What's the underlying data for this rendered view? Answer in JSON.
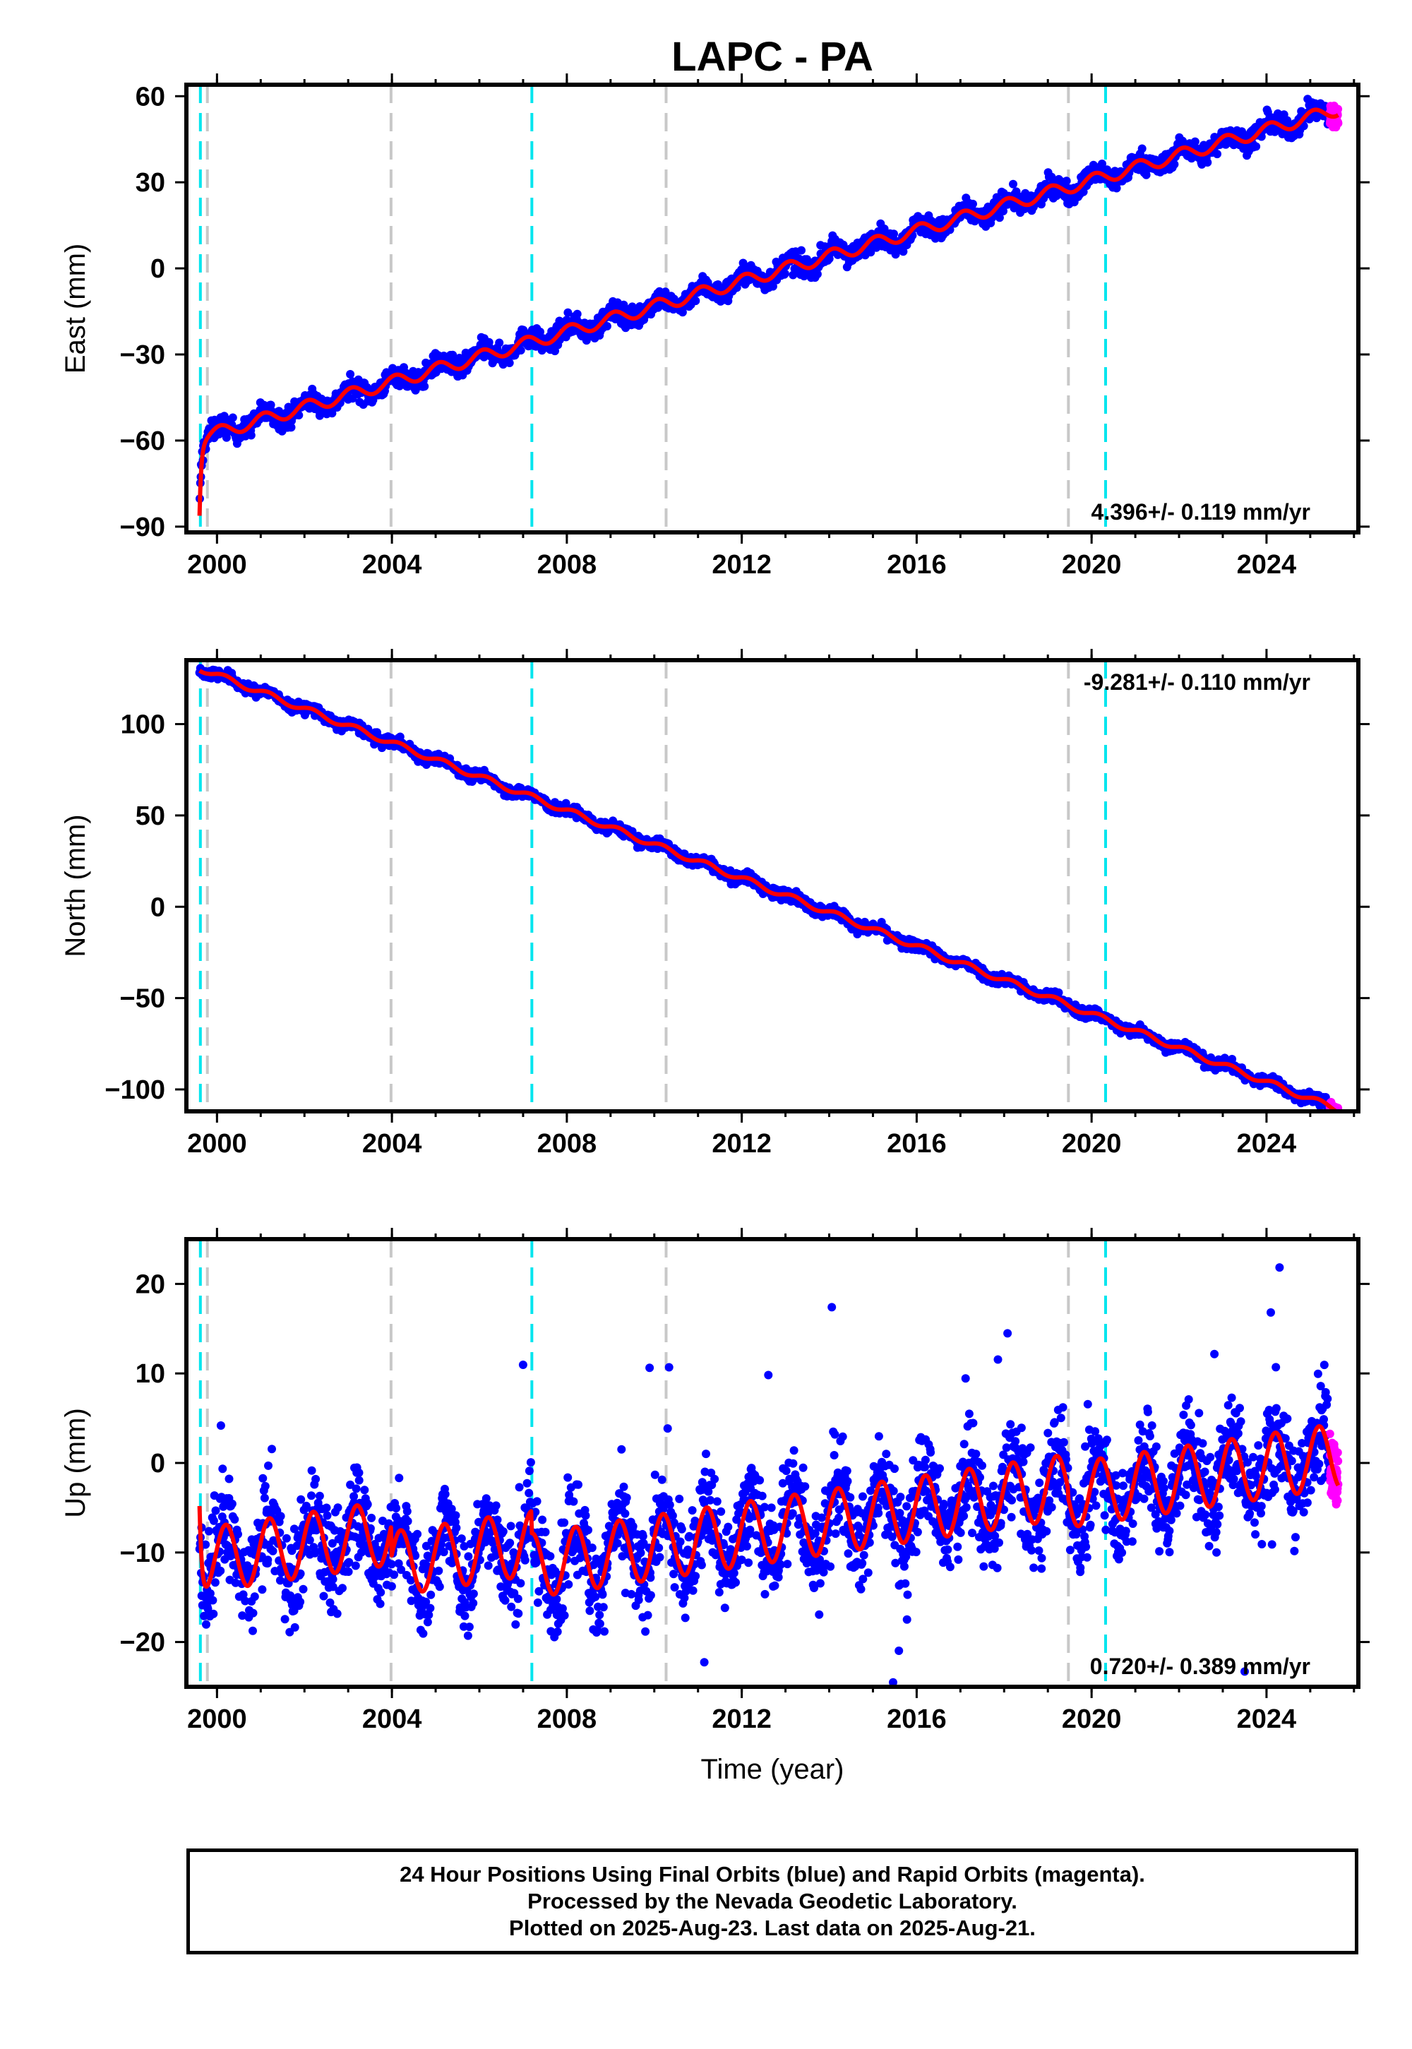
{
  "page": {
    "title": "LAPC - PA",
    "x_axis_label": "Time (year)",
    "notes": [
      "24 Hour Positions Using Final Orbits (blue) and Rapid Orbits (magenta).",
      "Processed by the Nevada Geodetic Laboratory.",
      "Plotted on 2025-Aug-23. Last data on 2025-Aug-21."
    ]
  },
  "colors": {
    "final_orbits": "#0000ff",
    "rapid_orbits": "#ff00ff",
    "model_fit": "#ff0000",
    "equipment_change": "#c8c8c8",
    "earthquake": "#00e5ee"
  },
  "chart_data": [
    {
      "type": "scatter",
      "title": "LAPC - PA",
      "xlabel": "",
      "ylabel": "East (mm)",
      "xlim": [
        1999.3,
        2026.1
      ],
      "ylim": [
        -92,
        64
      ],
      "xticks": [
        2000,
        2004,
        2008,
        2012,
        2016,
        2020,
        2024
      ],
      "xtick_labels": [
        "2000",
        "2004",
        "2008",
        "2012",
        "2016",
        "2020",
        "2024"
      ],
      "yticks": [
        60,
        30,
        0,
        -30,
        -60,
        -90
      ],
      "ytick_labels": [
        "60",
        "30",
        "0",
        "−30",
        "−60",
        "−90"
      ],
      "rate_label": "4.396+/- 0.119 mm/yr",
      "rate_position": "bottom-right",
      "equipment_change_epochs": [
        1999.78,
        2003.98,
        2010.27,
        2019.47
      ],
      "earthquake_epochs": [
        1999.62,
        2007.2,
        2020.32
      ],
      "gap": [
        2001.5,
        2001.55
      ],
      "model": {
        "trend_per_year": 4.396,
        "value_at_2012": -4.5,
        "seasonal_amp": 2.2,
        "seasonal_phase": 1.1,
        "early_offset": -25,
        "early_decay_years": 0.04
      },
      "series": [
        {
          "name": "Final Orbits (blue)",
          "x_range": [
            1999.6,
            2025.45
          ],
          "scatter_mm": 2.6,
          "outlier_mm": 0,
          "samples": 2200
        },
        {
          "name": "Rapid Orbits (magenta)",
          "x_range": [
            2025.45,
            2025.64
          ],
          "scatter_mm": 2.5,
          "samples": 60
        }
      ]
    },
    {
      "type": "scatter",
      "title": "",
      "xlabel": "",
      "ylabel": "North (mm)",
      "xlim": [
        1999.3,
        2026.1
      ],
      "ylim": [
        -112,
        135
      ],
      "xticks": [
        2000,
        2004,
        2008,
        2012,
        2016,
        2020,
        2024
      ],
      "xtick_labels": [
        "2000",
        "2004",
        "2008",
        "2012",
        "2016",
        "2020",
        "2024"
      ],
      "yticks": [
        100,
        50,
        0,
        -50,
        -100
      ],
      "ytick_labels": [
        "100",
        "50",
        "0",
        "−50",
        "−100"
      ],
      "rate_label": "-9.281+/- 0.110 mm/yr",
      "rate_position": "top-right",
      "equipment_change_epochs": [
        1999.78,
        2003.98,
        2010.27,
        2019.47
      ],
      "earthquake_epochs": [
        1999.62,
        2007.2,
        2020.32
      ],
      "gap": [
        2001.5,
        2001.55
      ],
      "model": {
        "trend_per_year": -9.281,
        "value_at_2012": 15.5,
        "seasonal_amp": 1.6,
        "seasonal_phase": 0.4,
        "early_offset": 0,
        "early_decay_years": 0.04
      },
      "series": [
        {
          "name": "Final Orbits (blue)",
          "x_range": [
            1999.6,
            2025.45
          ],
          "scatter_mm": 2.2,
          "outlier_mm": 0,
          "samples": 2200
        },
        {
          "name": "Rapid Orbits (magenta)",
          "x_range": [
            2025.45,
            2025.64
          ],
          "scatter_mm": 2.0,
          "samples": 60
        }
      ]
    },
    {
      "type": "scatter",
      "title": "",
      "xlabel": "Time (year)",
      "ylabel": "Up (mm)",
      "xlim": [
        1999.3,
        2026.1
      ],
      "ylim": [
        -25,
        25
      ],
      "xticks": [
        2000,
        2004,
        2008,
        2012,
        2016,
        2020,
        2024
      ],
      "xtick_labels": [
        "2000",
        "2004",
        "2008",
        "2012",
        "2016",
        "2020",
        "2024"
      ],
      "yticks": [
        20,
        10,
        0,
        -10,
        -20
      ],
      "ytick_labels": [
        "20",
        "10",
        "0",
        "−10",
        "−20"
      ],
      "rate_label": "0.720+/- 0.389 mm/yr",
      "rate_position": "bottom-right",
      "equipment_change_epochs": [
        1999.78,
        2003.98,
        2010.27,
        2019.47
      ],
      "earthquake_epochs": [
        1999.62,
        2007.2,
        2020.32
      ],
      "gap": [
        2001.5,
        2001.55
      ],
      "model": {
        "trend_per_year": 0.72,
        "value_at_2012": -2.0,
        "seasonal_amp": 3.6,
        "seasonal_phase": 0.3,
        "early_offset": 9,
        "early_decay_years": 0.05,
        "offsets": [
          {
            "at": 2003.98,
            "mm": -3.5
          },
          {
            "at": 2007.2,
            "mm": -2.5
          },
          {
            "at": 2019.47,
            "mm": -1.0
          }
        ]
      },
      "series": [
        {
          "name": "Final Orbits (blue)",
          "x_range": [
            1999.6,
            2025.45
          ],
          "scatter_mm": 3.8,
          "outlier_mm": 22,
          "samples": 2600
        },
        {
          "name": "Rapid Orbits (magenta)",
          "x_range": [
            2025.45,
            2025.64
          ],
          "scatter_mm": 3.2,
          "samples": 60
        }
      ]
    }
  ]
}
